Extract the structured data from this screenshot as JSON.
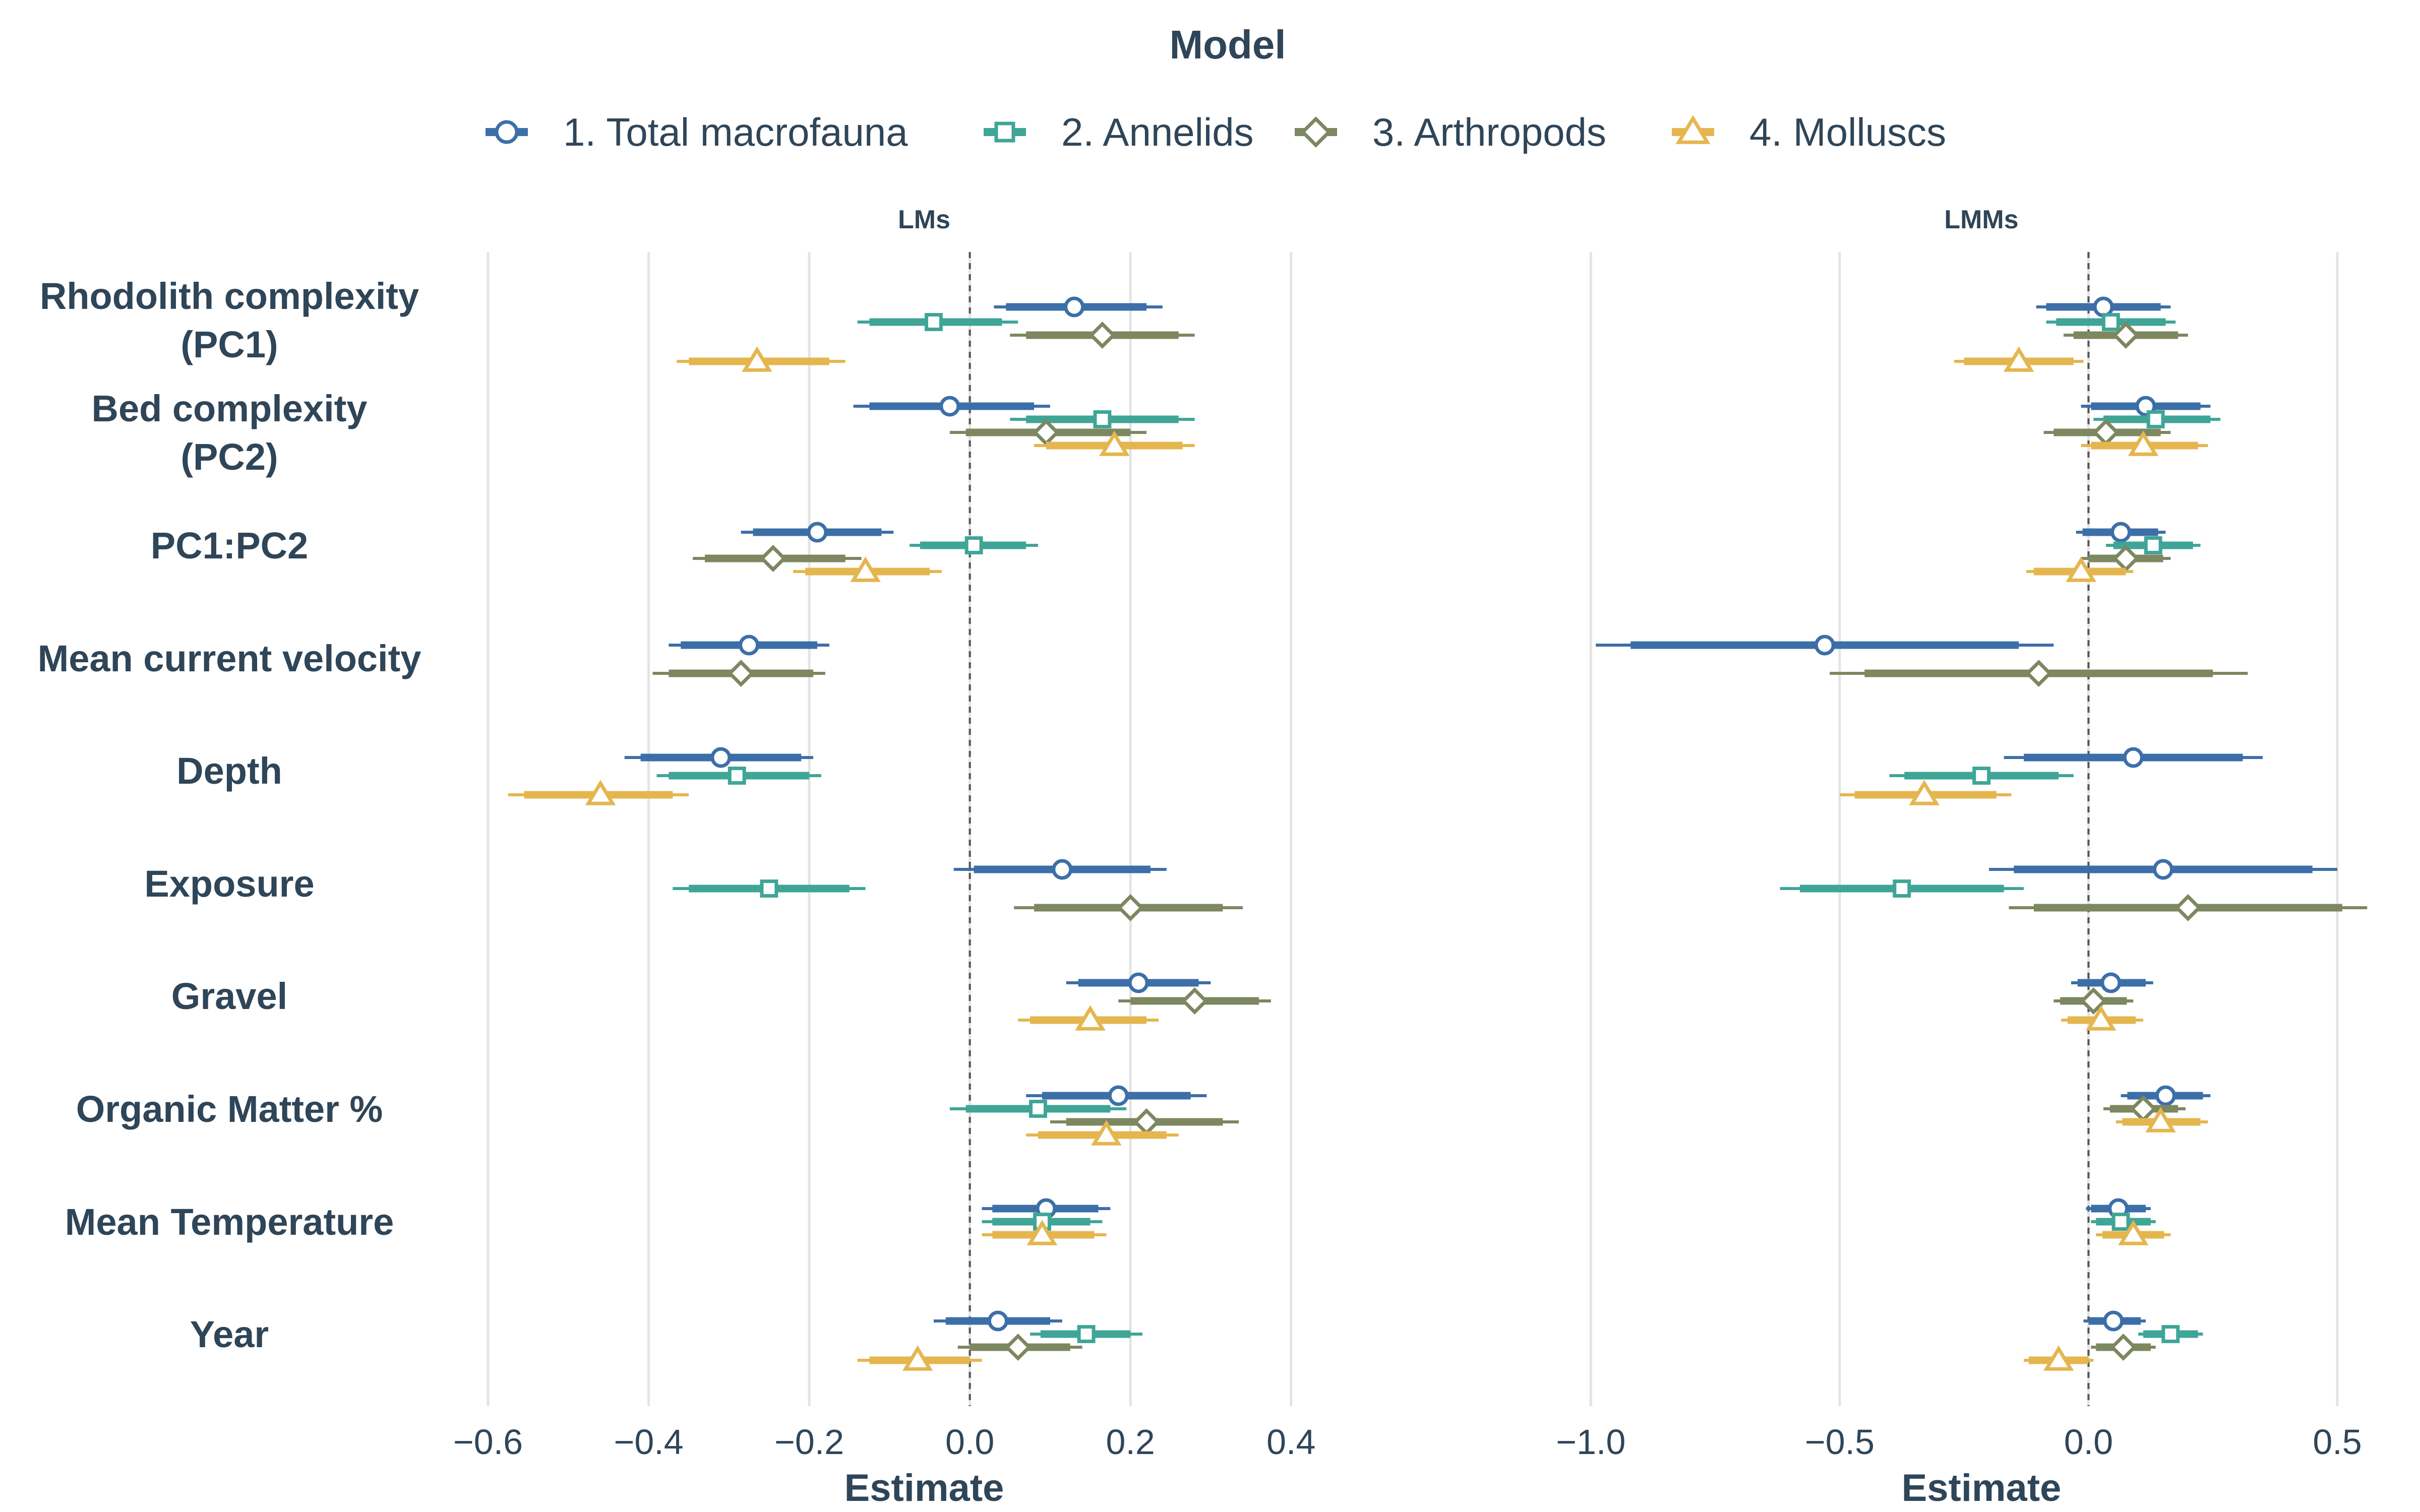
{
  "chart_data": {
    "type": "forest",
    "legend_title": "Model",
    "legend_position": "top",
    "xlabel": "Estimate",
    "grid": true,
    "reference_line": 0,
    "series": [
      {
        "name": "1. Total macrofauna",
        "color": "#3c6fa8",
        "marker": "circle"
      },
      {
        "name": "2. Annelids",
        "color": "#3fa597",
        "marker": "square"
      },
      {
        "name": "3. Arthropods",
        "color": "#7d8760",
        "marker": "diamond"
      },
      {
        "name": "4. Molluscs",
        "color": "#e5b64f",
        "marker": "triangle"
      }
    ],
    "categories": [
      [
        "Rhodolith complexity",
        "(PC1)"
      ],
      [
        "Bed complexity",
        "(PC2)"
      ],
      [
        "PC1:PC2"
      ],
      [
        "Mean current velocity"
      ],
      [
        "Depth"
      ],
      [
        "Exposure"
      ],
      [
        "Gravel"
      ],
      [
        "Organic Matter %"
      ],
      [
        "Mean Temperature"
      ],
      [
        "Year"
      ]
    ],
    "panels": [
      {
        "title": "LMs",
        "xlim": [
          -0.6,
          0.5
        ],
        "ticks": [
          -0.6,
          -0.4,
          -0.2,
          0.0,
          0.2,
          0.4
        ],
        "tick_labels": [
          "−0.6",
          "−0.4",
          "−0.2",
          "0.0",
          "0.2",
          "0.4"
        ],
        "estimates": [
          {
            "category": 0,
            "series": 0,
            "est": 0.13,
            "lo": 0.03,
            "hi": 0.24,
            "ilo": 0.045,
            "ihi": 0.22
          },
          {
            "category": 0,
            "series": 1,
            "est": -0.045,
            "lo": -0.14,
            "hi": 0.06,
            "ilo": -0.125,
            "ihi": 0.04
          },
          {
            "category": 0,
            "series": 2,
            "est": 0.165,
            "lo": 0.05,
            "hi": 0.28,
            "ilo": 0.07,
            "ihi": 0.26
          },
          {
            "category": 0,
            "series": 3,
            "est": -0.265,
            "lo": -0.365,
            "hi": -0.155,
            "ilo": -0.35,
            "ihi": -0.175
          },
          {
            "category": 1,
            "series": 0,
            "est": -0.025,
            "lo": -0.145,
            "hi": 0.1,
            "ilo": -0.125,
            "ihi": 0.08
          },
          {
            "category": 1,
            "series": 1,
            "est": 0.165,
            "lo": 0.05,
            "hi": 0.28,
            "ilo": 0.07,
            "ihi": 0.26
          },
          {
            "category": 1,
            "series": 2,
            "est": 0.095,
            "lo": -0.025,
            "hi": 0.22,
            "ilo": -0.005,
            "ihi": 0.2
          },
          {
            "category": 1,
            "series": 3,
            "est": 0.18,
            "lo": 0.08,
            "hi": 0.28,
            "ilo": 0.095,
            "ihi": 0.265
          },
          {
            "category": 2,
            "series": 0,
            "est": -0.19,
            "lo": -0.285,
            "hi": -0.095,
            "ilo": -0.27,
            "ihi": -0.11
          },
          {
            "category": 2,
            "series": 1,
            "est": 0.005,
            "lo": -0.075,
            "hi": 0.085,
            "ilo": -0.062,
            "ihi": 0.07
          },
          {
            "category": 2,
            "series": 2,
            "est": -0.245,
            "lo": -0.345,
            "hi": -0.135,
            "ilo": -0.33,
            "ihi": -0.155
          },
          {
            "category": 2,
            "series": 3,
            "est": -0.13,
            "lo": -0.22,
            "hi": -0.035,
            "ilo": -0.205,
            "ihi": -0.05
          },
          {
            "category": 3,
            "series": 0,
            "est": -0.275,
            "lo": -0.375,
            "hi": -0.175,
            "ilo": -0.36,
            "ihi": -0.19
          },
          {
            "category": 3,
            "series": 2,
            "est": -0.285,
            "lo": -0.395,
            "hi": -0.18,
            "ilo": -0.375,
            "ihi": -0.195
          },
          {
            "category": 4,
            "series": 0,
            "est": -0.31,
            "lo": -0.43,
            "hi": -0.195,
            "ilo": -0.41,
            "ihi": -0.21
          },
          {
            "category": 4,
            "series": 1,
            "est": -0.29,
            "lo": -0.39,
            "hi": -0.185,
            "ilo": -0.375,
            "ihi": -0.2
          },
          {
            "category": 4,
            "series": 3,
            "est": -0.46,
            "lo": -0.575,
            "hi": -0.35,
            "ilo": -0.555,
            "ihi": -0.37
          },
          {
            "category": 5,
            "series": 0,
            "est": 0.115,
            "lo": -0.02,
            "hi": 0.245,
            "ilo": 0.005,
            "ihi": 0.225
          },
          {
            "category": 5,
            "series": 1,
            "est": -0.25,
            "lo": -0.37,
            "hi": -0.13,
            "ilo": -0.35,
            "ihi": -0.15
          },
          {
            "category": 5,
            "series": 2,
            "est": 0.2,
            "lo": 0.055,
            "hi": 0.34,
            "ilo": 0.08,
            "ihi": 0.315
          },
          {
            "category": 6,
            "series": 0,
            "est": 0.21,
            "lo": 0.12,
            "hi": 0.3,
            "ilo": 0.135,
            "ihi": 0.285
          },
          {
            "category": 6,
            "series": 2,
            "est": 0.28,
            "lo": 0.185,
            "hi": 0.375,
            "ilo": 0.2,
            "ihi": 0.36
          },
          {
            "category": 6,
            "series": 3,
            "est": 0.15,
            "lo": 0.06,
            "hi": 0.235,
            "ilo": 0.075,
            "ihi": 0.22
          },
          {
            "category": 7,
            "series": 0,
            "est": 0.185,
            "lo": 0.07,
            "hi": 0.295,
            "ilo": 0.09,
            "ihi": 0.275
          },
          {
            "category": 7,
            "series": 1,
            "est": 0.085,
            "lo": -0.025,
            "hi": 0.195,
            "ilo": -0.005,
            "ihi": 0.175
          },
          {
            "category": 7,
            "series": 2,
            "est": 0.22,
            "lo": 0.1,
            "hi": 0.335,
            "ilo": 0.12,
            "ihi": 0.315
          },
          {
            "category": 7,
            "series": 3,
            "est": 0.17,
            "lo": 0.07,
            "hi": 0.26,
            "ilo": 0.085,
            "ihi": 0.245
          },
          {
            "category": 8,
            "series": 0,
            "est": 0.095,
            "lo": 0.015,
            "hi": 0.175,
            "ilo": 0.028,
            "ihi": 0.16
          },
          {
            "category": 8,
            "series": 1,
            "est": 0.09,
            "lo": 0.015,
            "hi": 0.165,
            "ilo": 0.028,
            "ihi": 0.15
          },
          {
            "category": 8,
            "series": 3,
            "est": 0.09,
            "lo": 0.015,
            "hi": 0.17,
            "ilo": 0.028,
            "ihi": 0.155
          },
          {
            "category": 9,
            "series": 0,
            "est": 0.035,
            "lo": -0.045,
            "hi": 0.115,
            "ilo": -0.03,
            "ihi": 0.1
          },
          {
            "category": 9,
            "series": 1,
            "est": 0.145,
            "lo": 0.075,
            "hi": 0.215,
            "ilo": 0.088,
            "ihi": 0.2
          },
          {
            "category": 9,
            "series": 2,
            "est": 0.06,
            "lo": -0.015,
            "hi": 0.14,
            "ilo": 0.0,
            "ihi": 0.125
          },
          {
            "category": 9,
            "series": 3,
            "est": -0.065,
            "lo": -0.14,
            "hi": 0.015,
            "ilo": -0.125,
            "ihi": 0.0
          }
        ]
      },
      {
        "title": "LMMs",
        "xlim": [
          -1.05,
          0.58
        ],
        "ticks": [
          -1.0,
          -0.5,
          0.0,
          0.5
        ],
        "tick_labels": [
          "−1.0",
          "−0.5",
          "0.0",
          "0.5"
        ],
        "estimates": [
          {
            "category": 0,
            "series": 0,
            "est": 0.03,
            "lo": -0.105,
            "hi": 0.165,
            "ilo": -0.085,
            "ihi": 0.145
          },
          {
            "category": 0,
            "series": 1,
            "est": 0.045,
            "lo": -0.085,
            "hi": 0.175,
            "ilo": -0.065,
            "ihi": 0.155
          },
          {
            "category": 0,
            "series": 2,
            "est": 0.075,
            "lo": -0.05,
            "hi": 0.2,
            "ilo": -0.03,
            "ihi": 0.18
          },
          {
            "category": 0,
            "series": 3,
            "est": -0.14,
            "lo": -0.27,
            "hi": -0.01,
            "ilo": -0.25,
            "ihi": -0.03
          },
          {
            "category": 1,
            "series": 0,
            "est": 0.115,
            "lo": -0.015,
            "hi": 0.245,
            "ilo": 0.005,
            "ihi": 0.225
          },
          {
            "category": 1,
            "series": 1,
            "est": 0.135,
            "lo": 0.01,
            "hi": 0.265,
            "ilo": 0.03,
            "ihi": 0.245
          },
          {
            "category": 1,
            "series": 2,
            "est": 0.035,
            "lo": -0.09,
            "hi": 0.165,
            "ilo": -0.07,
            "ihi": 0.145
          },
          {
            "category": 1,
            "series": 3,
            "est": 0.11,
            "lo": -0.015,
            "hi": 0.24,
            "ilo": 0.005,
            "ihi": 0.22
          },
          {
            "category": 2,
            "series": 0,
            "est": 0.065,
            "lo": -0.025,
            "hi": 0.155,
            "ilo": -0.012,
            "ihi": 0.14
          },
          {
            "category": 2,
            "series": 1,
            "est": 0.13,
            "lo": 0.035,
            "hi": 0.225,
            "ilo": 0.05,
            "ihi": 0.21
          },
          {
            "category": 2,
            "series": 2,
            "est": 0.075,
            "lo": -0.015,
            "hi": 0.165,
            "ilo": 0.0,
            "ihi": 0.15
          },
          {
            "category": 2,
            "series": 3,
            "est": -0.015,
            "lo": -0.125,
            "hi": 0.09,
            "ilo": -0.11,
            "ihi": 0.075
          },
          {
            "category": 3,
            "series": 0,
            "est": -0.53,
            "lo": -0.99,
            "hi": -0.07,
            "ilo": -0.92,
            "ihi": -0.14
          },
          {
            "category": 3,
            "series": 2,
            "est": -0.1,
            "lo": -0.52,
            "hi": 0.32,
            "ilo": -0.45,
            "ihi": 0.25
          },
          {
            "category": 4,
            "series": 0,
            "est": 0.09,
            "lo": -0.17,
            "hi": 0.35,
            "ilo": -0.13,
            "ihi": 0.31
          },
          {
            "category": 4,
            "series": 1,
            "est": -0.215,
            "lo": -0.4,
            "hi": -0.03,
            "ilo": -0.37,
            "ihi": -0.06
          },
          {
            "category": 4,
            "series": 3,
            "est": -0.33,
            "lo": -0.5,
            "hi": -0.155,
            "ilo": -0.47,
            "ihi": -0.185
          },
          {
            "category": 5,
            "series": 0,
            "est": 0.15,
            "lo": -0.2,
            "hi": 0.5,
            "ilo": -0.15,
            "ihi": 0.45
          },
          {
            "category": 5,
            "series": 1,
            "est": -0.375,
            "lo": -0.62,
            "hi": -0.13,
            "ilo": -0.58,
            "ihi": -0.17
          },
          {
            "category": 5,
            "series": 2,
            "est": 0.2,
            "lo": -0.16,
            "hi": 0.56,
            "ilo": -0.11,
            "ihi": 0.51
          },
          {
            "category": 6,
            "series": 0,
            "est": 0.045,
            "lo": -0.035,
            "hi": 0.13,
            "ilo": -0.022,
            "ihi": 0.115
          },
          {
            "category": 6,
            "series": 2,
            "est": 0.01,
            "lo": -0.07,
            "hi": 0.09,
            "ilo": -0.057,
            "ihi": 0.077
          },
          {
            "category": 6,
            "series": 3,
            "est": 0.025,
            "lo": -0.055,
            "hi": 0.11,
            "ilo": -0.042,
            "ihi": 0.095
          },
          {
            "category": 7,
            "series": 0,
            "est": 0.155,
            "lo": 0.065,
            "hi": 0.245,
            "ilo": 0.078,
            "ihi": 0.23
          },
          {
            "category": 7,
            "series": 2,
            "est": 0.11,
            "lo": 0.03,
            "hi": 0.195,
            "ilo": 0.043,
            "ihi": 0.18
          },
          {
            "category": 7,
            "series": 3,
            "est": 0.145,
            "lo": 0.055,
            "hi": 0.24,
            "ilo": 0.068,
            "ihi": 0.225
          },
          {
            "category": 8,
            "series": 0,
            "est": 0.06,
            "lo": -0.005,
            "hi": 0.125,
            "ilo": 0.005,
            "ihi": 0.115
          },
          {
            "category": 8,
            "series": 1,
            "est": 0.065,
            "lo": 0.005,
            "hi": 0.135,
            "ilo": 0.015,
            "ihi": 0.125
          },
          {
            "category": 8,
            "series": 3,
            "est": 0.09,
            "lo": 0.015,
            "hi": 0.165,
            "ilo": 0.028,
            "ihi": 0.152
          },
          {
            "category": 9,
            "series": 0,
            "est": 0.05,
            "lo": -0.01,
            "hi": 0.115,
            "ilo": 0.0,
            "ihi": 0.105
          },
          {
            "category": 9,
            "series": 1,
            "est": 0.165,
            "lo": 0.1,
            "hi": 0.23,
            "ilo": 0.11,
            "ihi": 0.22
          },
          {
            "category": 9,
            "series": 2,
            "est": 0.07,
            "lo": 0.005,
            "hi": 0.135,
            "ilo": 0.015,
            "ihi": 0.125
          },
          {
            "category": 9,
            "series": 3,
            "est": -0.06,
            "lo": -0.13,
            "hi": 0.01,
            "ilo": -0.12,
            "ihi": 0.0
          }
        ]
      }
    ]
  }
}
